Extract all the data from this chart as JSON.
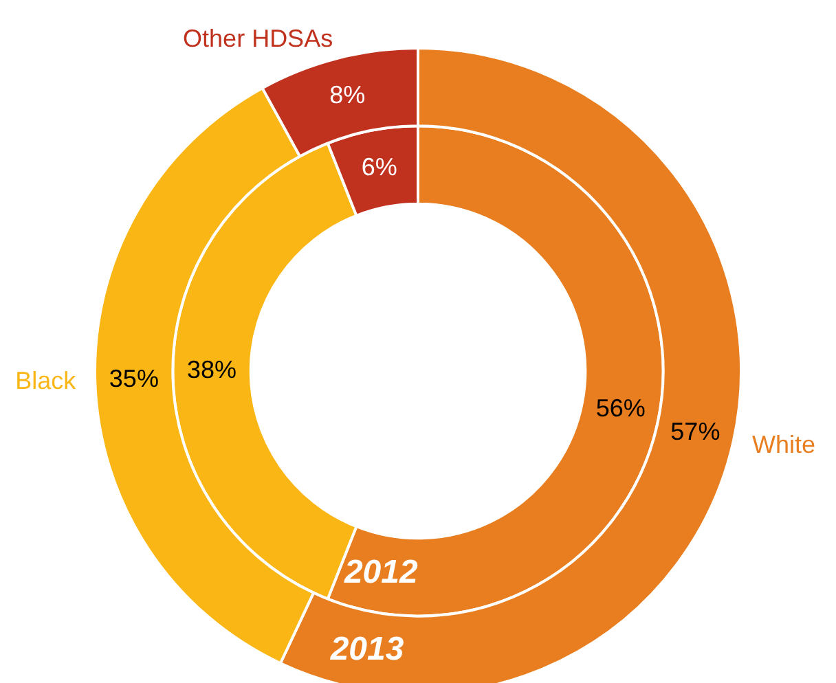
{
  "chart_data": {
    "type": "donut",
    "categories": [
      "White",
      "Black",
      "Other HDSAs"
    ],
    "colors": [
      "#e87e1f",
      "#f9b614",
      "#c0311e"
    ],
    "series": [
      {
        "name": "2013",
        "values": [
          57,
          35,
          8
        ],
        "value_labels": [
          "57%",
          "35%",
          "8%"
        ]
      },
      {
        "name": "2012",
        "values": [
          56,
          38,
          6
        ],
        "value_labels": [
          "56%",
          "38%",
          "6%"
        ]
      }
    ],
    "legend": false
  }
}
